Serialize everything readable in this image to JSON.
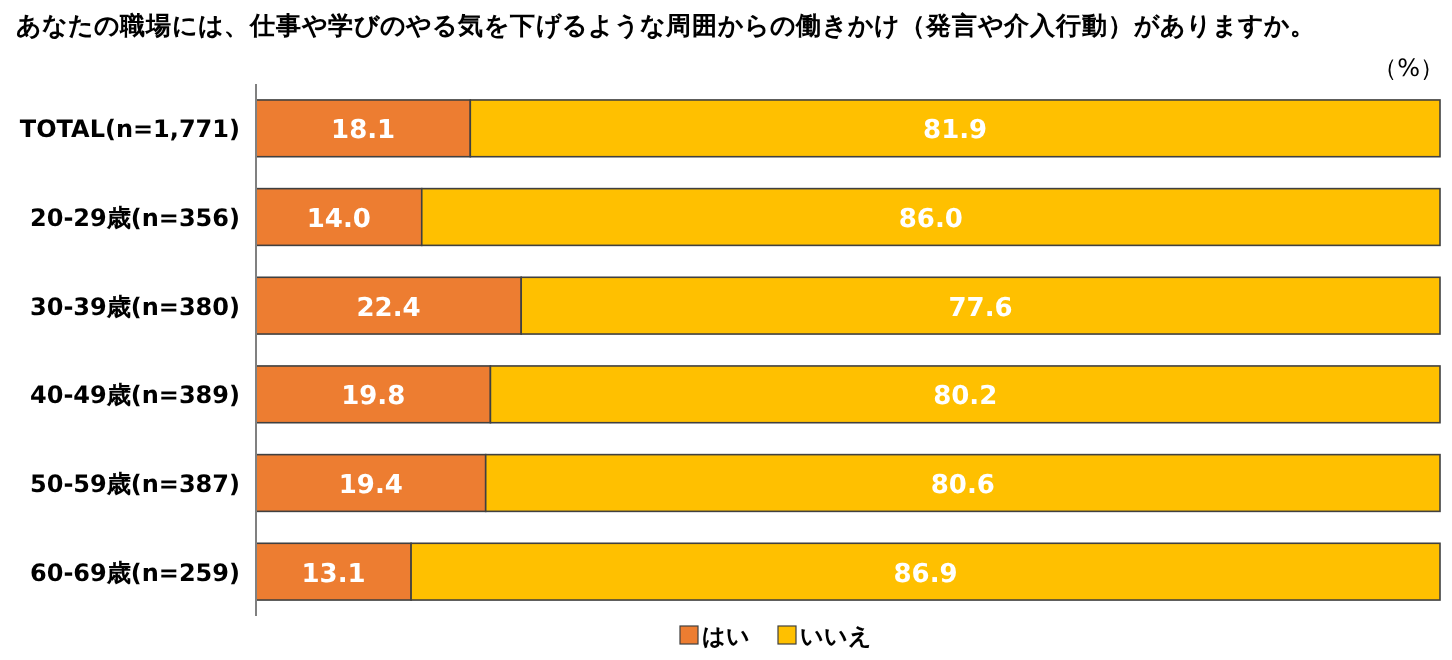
{
  "chart_data": {
    "type": "bar",
    "orientation": "horizontal",
    "stacked": true,
    "title": "あなたの職場には、仕事や学びのやる気を下げるような周囲からの働きかけ（発言や介入行動）がありますか。",
    "annotations": [
      "（%）"
    ],
    "categories": [
      "TOTAL(n=1,771)",
      "20-29歳(n=356)",
      "30-39歳(n=380)",
      "40-49歳(n=389)",
      "50-59歳(n=387)",
      "60-69歳(n=259)"
    ],
    "series": [
      {
        "name": "はい",
        "color": "#ed7d31",
        "values": [
          18.1,
          14.0,
          22.4,
          19.8,
          19.4,
          13.1
        ],
        "value_labels": [
          "18.1",
          "14.0",
          "22.4",
          "19.8",
          "19.4",
          "13.1"
        ]
      },
      {
        "name": "いいえ",
        "color": "#ffc000",
        "values": [
          81.9,
          86.0,
          77.6,
          80.2,
          80.6,
          86.9
        ],
        "value_labels": [
          "81.9",
          "86.0",
          "77.6",
          "80.2",
          "80.6",
          "86.9"
        ]
      }
    ],
    "xlim": [
      0,
      100
    ],
    "tick_labels": "y",
    "legend": "bottom"
  }
}
